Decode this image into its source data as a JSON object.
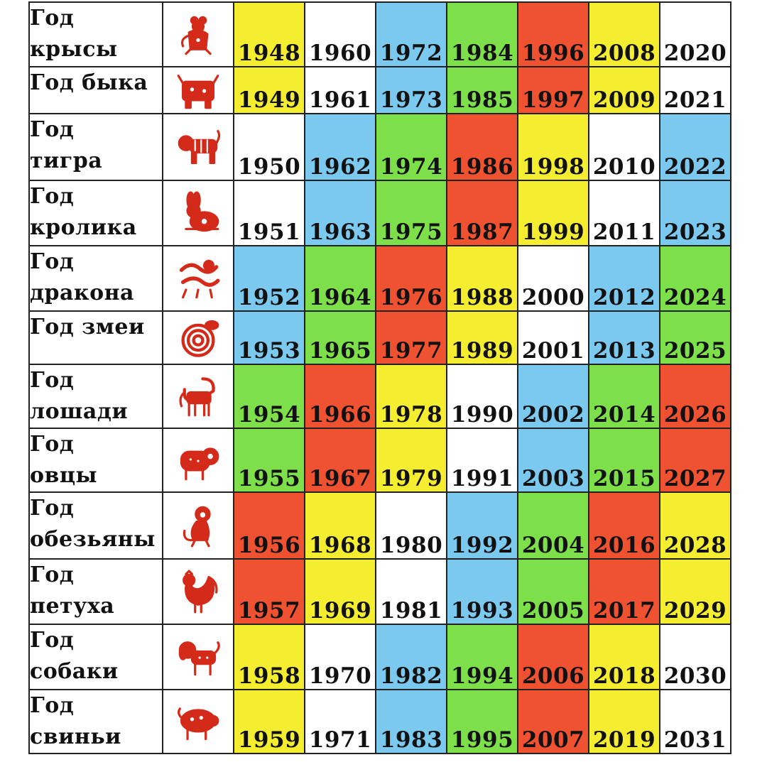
{
  "colors": {
    "yellow": "#f5ee30",
    "white": "#ffffff",
    "blue": "#7cc9f0",
    "green": "#7ddf4a",
    "red": "#ee5230",
    "icon_red": "#d42a1a"
  },
  "rows": [
    {
      "label": [
        "Год",
        "крысы"
      ],
      "icon": "rat-icon",
      "height": 91,
      "years": [
        {
          "y": "1948",
          "c": "yellow"
        },
        {
          "y": "1960",
          "c": "white"
        },
        {
          "y": "1972",
          "c": "blue"
        },
        {
          "y": "1984",
          "c": "green"
        },
        {
          "y": "1996",
          "c": "red"
        },
        {
          "y": "2008",
          "c": "yellow"
        },
        {
          "y": "2020",
          "c": "white"
        }
      ]
    },
    {
      "label": [
        "Год быка"
      ],
      "icon": "ox-icon",
      "height": 66,
      "years": [
        {
          "y": "1949",
          "c": "yellow"
        },
        {
          "y": "1961",
          "c": "white"
        },
        {
          "y": "1973",
          "c": "blue"
        },
        {
          "y": "1985",
          "c": "green"
        },
        {
          "y": "1997",
          "c": "red"
        },
        {
          "y": "2009",
          "c": "yellow"
        },
        {
          "y": "2021",
          "c": "white"
        }
      ]
    },
    {
      "label": [
        "Год",
        "тигра"
      ],
      "icon": "tiger-icon",
      "height": 94,
      "years": [
        {
          "y": "1950",
          "c": "white"
        },
        {
          "y": "1962",
          "c": "blue"
        },
        {
          "y": "1974",
          "c": "green"
        },
        {
          "y": "1986",
          "c": "red"
        },
        {
          "y": "1998",
          "c": "yellow"
        },
        {
          "y": "2010",
          "c": "white"
        },
        {
          "y": "2022",
          "c": "blue"
        }
      ]
    },
    {
      "label": [
        "Год",
        "кролика"
      ],
      "icon": "rabbit-icon",
      "height": 92,
      "years": [
        {
          "y": "1951",
          "c": "white"
        },
        {
          "y": "1963",
          "c": "blue"
        },
        {
          "y": "1975",
          "c": "green"
        },
        {
          "y": "1987",
          "c": "red"
        },
        {
          "y": "1999",
          "c": "yellow"
        },
        {
          "y": "2011",
          "c": "white"
        },
        {
          "y": "2023",
          "c": "blue"
        }
      ]
    },
    {
      "label": [
        "Год",
        "дракона"
      ],
      "icon": "dragon-icon",
      "height": 92,
      "years": [
        {
          "y": "1952",
          "c": "blue"
        },
        {
          "y": "1964",
          "c": "green"
        },
        {
          "y": "1976",
          "c": "red"
        },
        {
          "y": "1988",
          "c": "yellow"
        },
        {
          "y": "2000",
          "c": "white"
        },
        {
          "y": "2012",
          "c": "blue"
        },
        {
          "y": "2024",
          "c": "green"
        }
      ]
    },
    {
      "label": [
        "Год змеи"
      ],
      "icon": "snake-icon",
      "height": 75,
      "years": [
        {
          "y": "1953",
          "c": "blue"
        },
        {
          "y": "1965",
          "c": "green"
        },
        {
          "y": "1977",
          "c": "red"
        },
        {
          "y": "1989",
          "c": "yellow"
        },
        {
          "y": "2001",
          "c": "white"
        },
        {
          "y": "2013",
          "c": "blue"
        },
        {
          "y": "2025",
          "c": "green"
        }
      ]
    },
    {
      "label": [
        "Год",
        "лошади"
      ],
      "icon": "horse-icon",
      "height": 90,
      "years": [
        {
          "y": "1954",
          "c": "green"
        },
        {
          "y": "1966",
          "c": "red"
        },
        {
          "y": "1978",
          "c": "yellow"
        },
        {
          "y": "1990",
          "c": "white"
        },
        {
          "y": "2002",
          "c": "blue"
        },
        {
          "y": "2014",
          "c": "green"
        },
        {
          "y": "2026",
          "c": "red"
        }
      ]
    },
    {
      "label": [
        "Год",
        "овцы"
      ],
      "icon": "sheep-icon",
      "height": 90,
      "years": [
        {
          "y": "1955",
          "c": "green"
        },
        {
          "y": "1967",
          "c": "red"
        },
        {
          "y": "1979",
          "c": "yellow"
        },
        {
          "y": "1991",
          "c": "white"
        },
        {
          "y": "2003",
          "c": "blue"
        },
        {
          "y": "2015",
          "c": "green"
        },
        {
          "y": "2027",
          "c": "red"
        }
      ]
    },
    {
      "label": [
        "Год",
        "обезьяны"
      ],
      "icon": "monkey-icon",
      "height": 94,
      "years": [
        {
          "y": "1956",
          "c": "red"
        },
        {
          "y": "1968",
          "c": "yellow"
        },
        {
          "y": "1980",
          "c": "white"
        },
        {
          "y": "1992",
          "c": "blue"
        },
        {
          "y": "2004",
          "c": "green"
        },
        {
          "y": "2016",
          "c": "red"
        },
        {
          "y": "2028",
          "c": "yellow"
        }
      ]
    },
    {
      "label": [
        "Год",
        "петуха"
      ],
      "icon": "rooster-icon",
      "height": 92,
      "years": [
        {
          "y": "1957",
          "c": "red"
        },
        {
          "y": "1969",
          "c": "yellow"
        },
        {
          "y": "1981",
          "c": "white"
        },
        {
          "y": "1993",
          "c": "blue"
        },
        {
          "y": "2005",
          "c": "green"
        },
        {
          "y": "2017",
          "c": "red"
        },
        {
          "y": "2029",
          "c": "yellow"
        }
      ]
    },
    {
      "label": [
        "Год",
        "собаки"
      ],
      "icon": "dog-icon",
      "height": 92,
      "years": [
        {
          "y": "1958",
          "c": "yellow"
        },
        {
          "y": "1970",
          "c": "white"
        },
        {
          "y": "1982",
          "c": "blue"
        },
        {
          "y": "1994",
          "c": "green"
        },
        {
          "y": "2006",
          "c": "red"
        },
        {
          "y": "2018",
          "c": "yellow"
        },
        {
          "y": "2030",
          "c": "white"
        }
      ]
    },
    {
      "label": [
        "Год",
        "свиньи"
      ],
      "icon": "pig-icon",
      "height": 90,
      "years": [
        {
          "y": "1959",
          "c": "yellow"
        },
        {
          "y": "1971",
          "c": "white"
        },
        {
          "y": "1983",
          "c": "blue"
        },
        {
          "y": "1995",
          "c": "green"
        },
        {
          "y": "2007",
          "c": "red"
        },
        {
          "y": "2019",
          "c": "yellow"
        },
        {
          "y": "2031",
          "c": "white"
        }
      ]
    }
  ]
}
